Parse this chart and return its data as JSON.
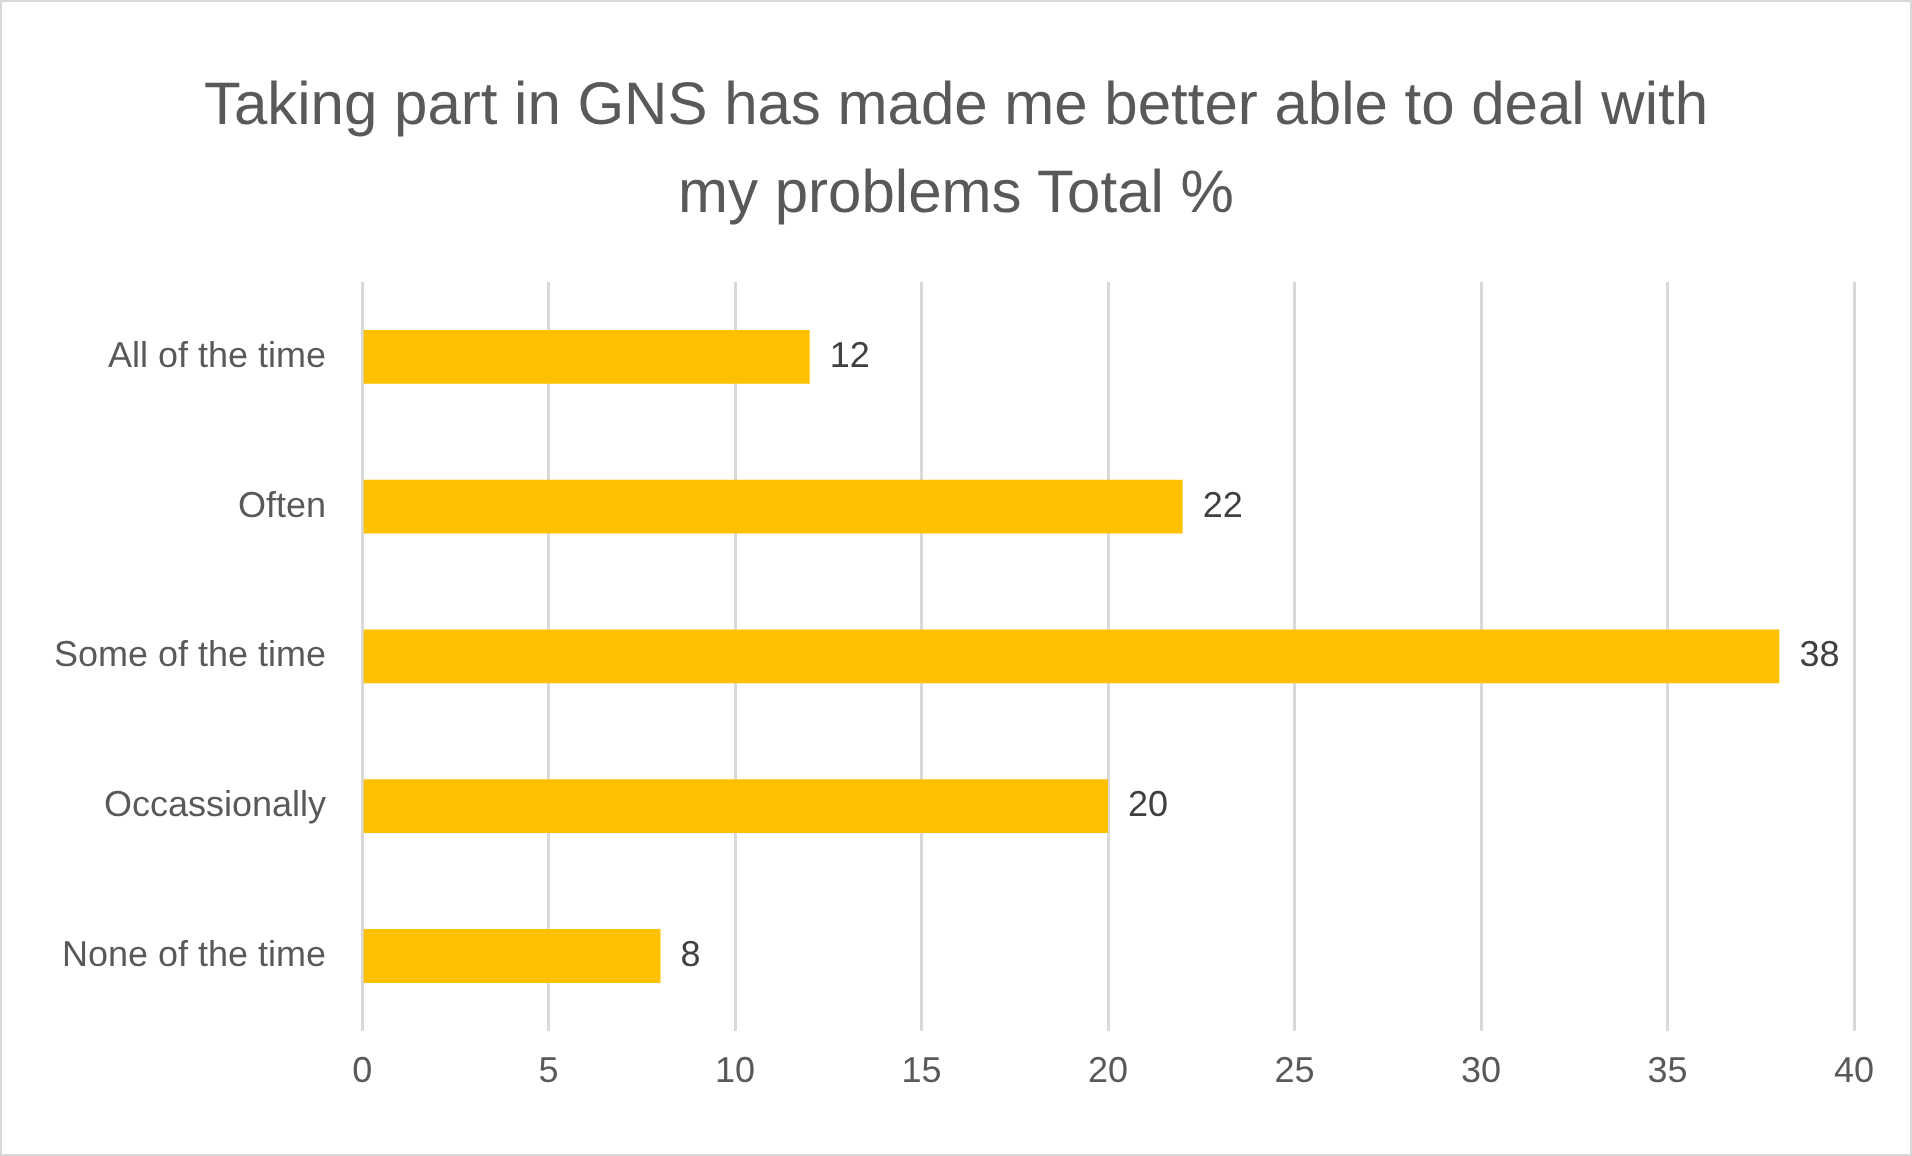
{
  "chart_data": {
    "type": "bar",
    "orientation": "horizontal",
    "title": "Taking part in GNS has made me better able to deal with my problems Total %",
    "categories": [
      "All of the time",
      "Often",
      "Some of the time",
      "Occassionally",
      "None of the time"
    ],
    "values": [
      12,
      22,
      38,
      20,
      8
    ],
    "color": "#ffc000",
    "xlim": [
      0,
      40
    ],
    "xticks": [
      0,
      5,
      10,
      15,
      20,
      25,
      30,
      35,
      40
    ],
    "grid": "x",
    "data_labels": true
  }
}
